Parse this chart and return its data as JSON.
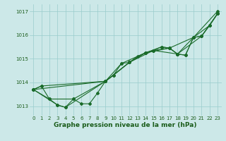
{
  "xlabel": "Graphe pression niveau de la mer (hPa)",
  "xlim": [
    -0.5,
    23.5
  ],
  "ylim": [
    1012.6,
    1017.3
  ],
  "yticks": [
    1013,
    1014,
    1015,
    1016,
    1017
  ],
  "xticks": [
    0,
    1,
    2,
    3,
    4,
    5,
    6,
    7,
    8,
    9,
    10,
    11,
    12,
    13,
    14,
    15,
    16,
    17,
    18,
    19,
    20,
    21,
    22,
    23
  ],
  "background_color": "#cce8e8",
  "grid_color": "#99cccc",
  "line_color": "#1a6b2a",
  "lines": [
    {
      "x": [
        0,
        1,
        2,
        3,
        4,
        5,
        6,
        7,
        8,
        9,
        10,
        11,
        12,
        13,
        14,
        15,
        16,
        17,
        18,
        19,
        20,
        21,
        22,
        23
      ],
      "y": [
        1013.7,
        1013.85,
        1013.3,
        1013.05,
        1012.95,
        1013.3,
        1013.1,
        1013.1,
        1013.55,
        1014.05,
        1014.3,
        1014.8,
        1014.85,
        1015.1,
        1015.25,
        1015.35,
        1015.5,
        1015.45,
        1015.2,
        1015.15,
        1015.9,
        1015.95,
        1016.4,
        1016.9
      ]
    },
    {
      "x": [
        0,
        3,
        4,
        9,
        12,
        15,
        18,
        21,
        23
      ],
      "y": [
        1013.7,
        1013.05,
        1012.95,
        1014.05,
        1014.85,
        1015.35,
        1015.2,
        1015.95,
        1016.9
      ]
    },
    {
      "x": [
        0,
        2,
        5,
        9,
        12,
        14,
        17,
        18,
        20,
        22,
        23
      ],
      "y": [
        1013.7,
        1013.3,
        1013.3,
        1014.05,
        1014.85,
        1015.25,
        1015.45,
        1015.2,
        1015.9,
        1016.4,
        1016.9
      ]
    },
    {
      "x": [
        0,
        1,
        9,
        11,
        14,
        15,
        17,
        20,
        23
      ],
      "y": [
        1013.7,
        1013.85,
        1014.05,
        1014.8,
        1015.25,
        1015.35,
        1015.45,
        1015.9,
        1017.0
      ]
    },
    {
      "x": [
        0,
        9,
        10,
        12,
        14,
        16,
        17,
        18,
        19,
        20,
        21,
        22,
        23
      ],
      "y": [
        1013.7,
        1014.05,
        1014.3,
        1014.85,
        1015.25,
        1015.5,
        1015.45,
        1015.2,
        1015.15,
        1015.9,
        1015.95,
        1016.4,
        1016.9
      ]
    }
  ],
  "marker": "D",
  "marker_size": 2.0,
  "line_width": 0.8,
  "font_color": "#1a5c1a",
  "tick_fontsize": 5.0,
  "xlabel_fontsize": 6.5
}
